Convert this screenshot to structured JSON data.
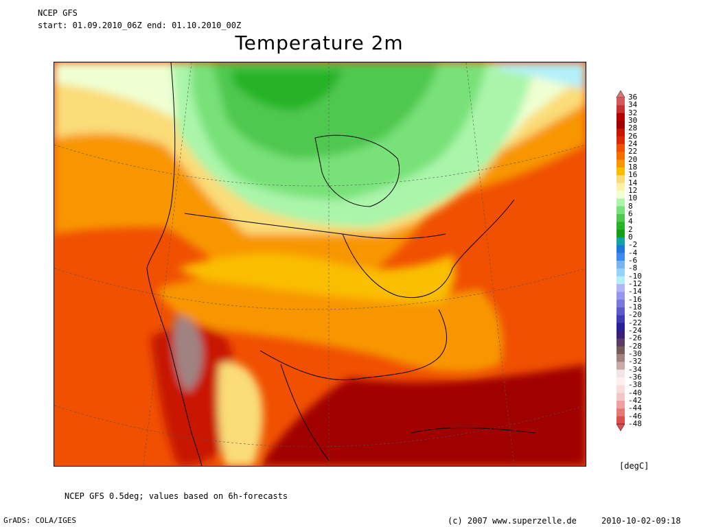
{
  "header": {
    "model": "NCEP GFS",
    "period": "start: 01.09.2010_06Z   end: 01.10.2010_00Z",
    "title": "Temperature 2m"
  },
  "legend": {
    "units": "[degC]",
    "levels": [
      "36",
      "34",
      "32",
      "30",
      "28",
      "26",
      "24",
      "22",
      "20",
      "18",
      "16",
      "14",
      "12",
      "10",
      "8",
      "6",
      "4",
      "2",
      "0",
      "-2",
      "-4",
      "-6",
      "-8",
      "-10",
      "-12",
      "-14",
      "-16",
      "-18",
      "-20",
      "-22",
      "-24",
      "-26",
      "-28",
      "-30",
      "-32",
      "-34",
      "-36",
      "-38",
      "-40",
      "-42",
      "-44",
      "-46",
      "-48"
    ],
    "colors": [
      "#d87878",
      "#d25a5a",
      "#c83232",
      "#b40000",
      "#a00000",
      "#c81400",
      "#dc2800",
      "#f05000",
      "#f46e00",
      "#f89600",
      "#fabe00",
      "#fadc78",
      "#fff0aa",
      "#f0ffd2",
      "#aaf5aa",
      "#78e178",
      "#50c850",
      "#28b428",
      "#14a014",
      "#12a0aa",
      "#1e78dc",
      "#3c8cf0",
      "#78b4f0",
      "#96d2fa",
      "#b4f0fa",
      "#b4b4fa",
      "#9696f0",
      "#7878dc",
      "#5a5ac8",
      "#3c3cb4",
      "#281e96",
      "#3c1e78",
      "#5a3c64",
      "#785a5a",
      "#a08282",
      "#c8aaaa",
      "#f0e6e6",
      "#fff0f0",
      "#fadcdc",
      "#f0c8c8",
      "#f0a0a0",
      "#e67878",
      "#dc5050"
    ]
  },
  "footer": {
    "note": "NCEP GFS 0.5deg; values based on 6h-forecasts",
    "software": "GrADS: COLA/IGES",
    "copyright": "(c) 2007 www.superzelle.de",
    "timestamp": "2010-10-02-09:18"
  }
}
